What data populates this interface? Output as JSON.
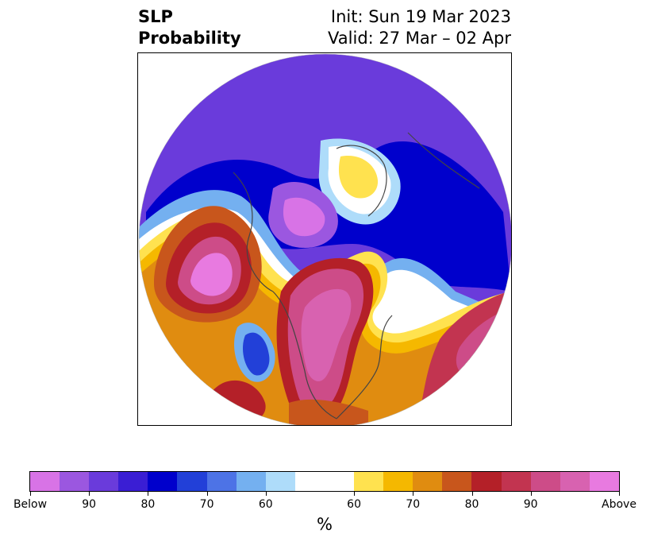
{
  "title": {
    "left_line1": "SLP",
    "left_line2": "Probability",
    "right_line1": "Init: Sun 19 Mar 2023",
    "right_line2": "Valid: 27 Mar – 02 Apr"
  },
  "colorbar": {
    "unit": "%",
    "tick_labels": [
      "Below",
      "90",
      "80",
      "70",
      "60",
      "60",
      "70",
      "80",
      "90",
      "Above"
    ],
    "colors": [
      "#d873e6",
      "#9b57e0",
      "#6a3bdb",
      "#3a1ed4",
      "#0000cc",
      "#2240d8",
      "#4d73e6",
      "#74b0f0",
      "#aedcfa",
      "#ffffff",
      "#ffe24f",
      "#f5b800",
      "#e08c10",
      "#c8561c",
      "#b42028",
      "#c23450",
      "#cd4c88",
      "#d862b0",
      "#e87ae0"
    ]
  },
  "map": {
    "projection": "north-polar-stereographic",
    "variable": "sea-level-pressure-probability",
    "regions": [
      {
        "name": "gulf-of-alaska-above",
        "category": "above-high",
        "color": "#d862b0"
      },
      {
        "name": "central-north-america-above",
        "category": "above-high",
        "color": "#cd4c88"
      },
      {
        "name": "north-atlantic-above",
        "category": "above-mid",
        "color": "#c23450"
      },
      {
        "name": "greenland-above",
        "category": "above-low",
        "color": "#f5b800"
      },
      {
        "name": "arctic-ocean-below",
        "category": "below-high",
        "color": "#9b57e0"
      },
      {
        "name": "western-us-below",
        "category": "below-mid",
        "color": "#2240d8"
      },
      {
        "name": "eurasia-below",
        "category": "below-mid",
        "color": "#6a3bdb"
      }
    ]
  }
}
